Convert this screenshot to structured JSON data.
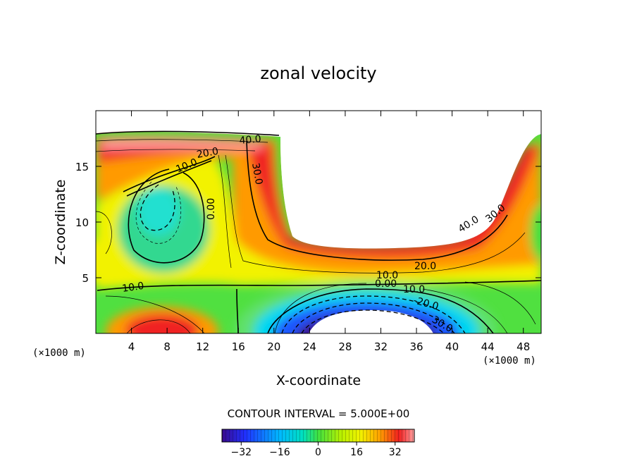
{
  "chart_data": {
    "type": "contour",
    "title": "zonal velocity",
    "xlabel": "X-coordinate",
    "ylabel": "Z-coordinate",
    "x_unit_label": "(×1000 m)",
    "z_unit_label": "(×1000 m)",
    "xlim": [
      0,
      50
    ],
    "zlim": [
      0,
      20
    ],
    "x_ticks": [
      4,
      8,
      12,
      16,
      20,
      24,
      28,
      32,
      36,
      40,
      44,
      48
    ],
    "z_ticks": [
      5,
      10,
      15
    ],
    "contour_interval_label": "CONTOUR INTERVAL = 5.000E+00",
    "contour_labels": [
      {
        "text": "40.0",
        "x": 17.2,
        "z": 17.0
      },
      {
        "text": "20.0",
        "x": 12.3,
        "z": 15.8
      },
      {
        "text": "10.0",
        "x": 10.6,
        "z": 14.7
      },
      {
        "text": "30.0",
        "x": 18.0,
        "z": 14.0
      },
      {
        "text": "0.00",
        "x": 11.5,
        "z": 11.5
      },
      {
        "text": "40.0",
        "x": 42.0,
        "z": 10.0
      },
      {
        "text": "30.0",
        "x": 45.0,
        "z": 10.5
      },
      {
        "text": "20.0",
        "x": 37.5,
        "z": 6.0
      },
      {
        "text": "10.0",
        "x": 33.0,
        "z": 5.1
      },
      {
        "text": "0.00",
        "x": 33.0,
        "z": 4.4
      },
      {
        "text": "10.0",
        "x": 37.5,
        "z": 3.9
      },
      {
        "text": "-20.0",
        "x": 38.5,
        "z": 2.8
      },
      {
        "text": "30.0",
        "x": 39.5,
        "z": 1.2
      },
      {
        "text": "10.0",
        "x": 4.5,
        "z": 4.3
      }
    ],
    "colorbar": {
      "range": [
        -40,
        40
      ],
      "ticks": [
        -32,
        -16,
        0,
        16,
        32
      ],
      "tick_labels": [
        "−32",
        "−16",
        "0",
        "16",
        "32"
      ]
    }
  },
  "colors": {
    "strong_west": "#3a0a8c",
    "blue": "#1a3cff",
    "cyan": "#00e0ff",
    "green": "#40e040",
    "yellow": "#f2f200",
    "orange": "#ff9a00",
    "red": "#e82020",
    "pink": "#ff8a8a"
  }
}
